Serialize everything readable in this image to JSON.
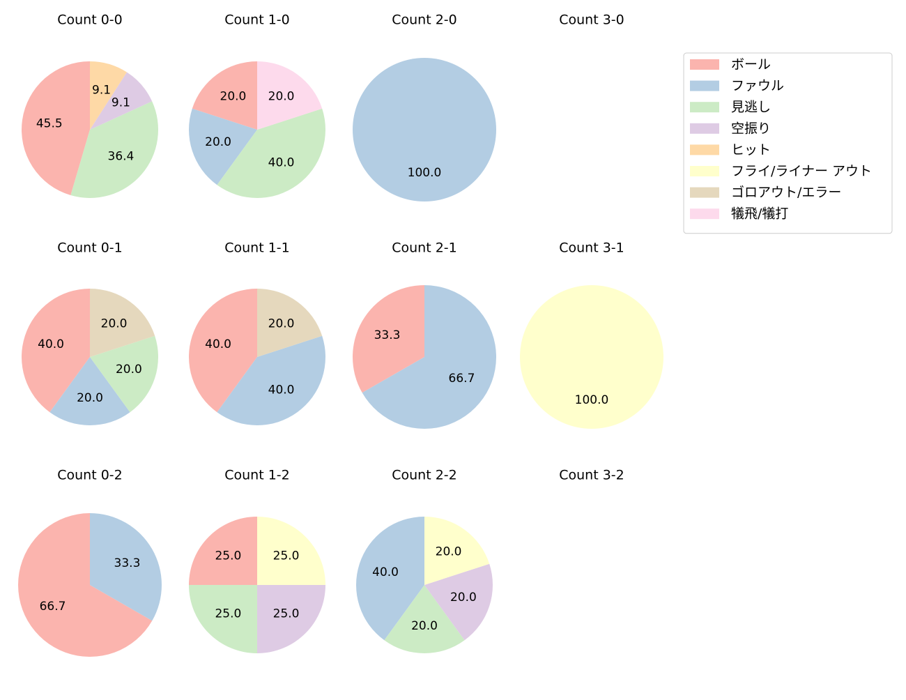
{
  "legend": {
    "entries": [
      {
        "label": "ボール",
        "color": "#fbb4ae"
      },
      {
        "label": "ファウル",
        "color": "#b3cde3"
      },
      {
        "label": "見逃し",
        "color": "#ccebc5"
      },
      {
        "label": "空振り",
        "color": "#decbe4"
      },
      {
        "label": "ヒット",
        "color": "#fed9a6"
      },
      {
        "label": "フライ/ライナー アウト",
        "color": "#ffffcc"
      },
      {
        "label": "ゴロアウト/エラー",
        "color": "#e5d8bd"
      },
      {
        "label": "犠飛/犠打",
        "color": "#fddaec"
      }
    ],
    "placement": "top-right"
  },
  "chart_data": [
    {
      "type": "pie",
      "title": "Count 0-0",
      "labels": [
        "ボール",
        "見逃し",
        "空振り",
        "ヒット"
      ],
      "values": [
        45.5,
        36.4,
        9.1,
        9.1
      ]
    },
    {
      "type": "pie",
      "title": "Count 1-0",
      "labels": [
        "ボール",
        "ファウル",
        "見逃し",
        "犠飛/犠打"
      ],
      "values": [
        20.0,
        20.0,
        40.0,
        20.0
      ]
    },
    {
      "type": "pie",
      "title": "Count 2-0",
      "labels": [
        "ファウル"
      ],
      "values": [
        100.0
      ]
    },
    {
      "type": "pie",
      "title": "Count 3-0",
      "labels": [],
      "values": []
    },
    {
      "type": "pie",
      "title": "Count 0-1",
      "labels": [
        "ボール",
        "ファウル",
        "見逃し",
        "ゴロアウト/エラー"
      ],
      "values": [
        40.0,
        20.0,
        20.0,
        20.0
      ]
    },
    {
      "type": "pie",
      "title": "Count 1-1",
      "labels": [
        "ボール",
        "ファウル",
        "ゴロアウト/エラー"
      ],
      "values": [
        40.0,
        40.0,
        20.0
      ]
    },
    {
      "type": "pie",
      "title": "Count 2-1",
      "labels": [
        "ボール",
        "ファウル"
      ],
      "values": [
        33.3,
        66.7
      ]
    },
    {
      "type": "pie",
      "title": "Count 3-1",
      "labels": [
        "フライ/ライナー アウト"
      ],
      "values": [
        100.0
      ]
    },
    {
      "type": "pie",
      "title": "Count 0-2",
      "labels": [
        "ボール",
        "ファウル"
      ],
      "values": [
        66.7,
        33.3
      ]
    },
    {
      "type": "pie",
      "title": "Count 1-2",
      "labels": [
        "ボール",
        "見逃し",
        "空振り",
        "フライ/ライナー アウト"
      ],
      "values": [
        25.0,
        25.0,
        25.0,
        25.0
      ]
    },
    {
      "type": "pie",
      "title": "Count 2-2",
      "labels": [
        "ファウル",
        "見逃し",
        "空振り",
        "フライ/ライナー アウト"
      ],
      "values": [
        40.0,
        20.0,
        20.0,
        20.0
      ]
    },
    {
      "type": "pie",
      "title": "Count 3-2",
      "labels": [],
      "values": []
    }
  ]
}
